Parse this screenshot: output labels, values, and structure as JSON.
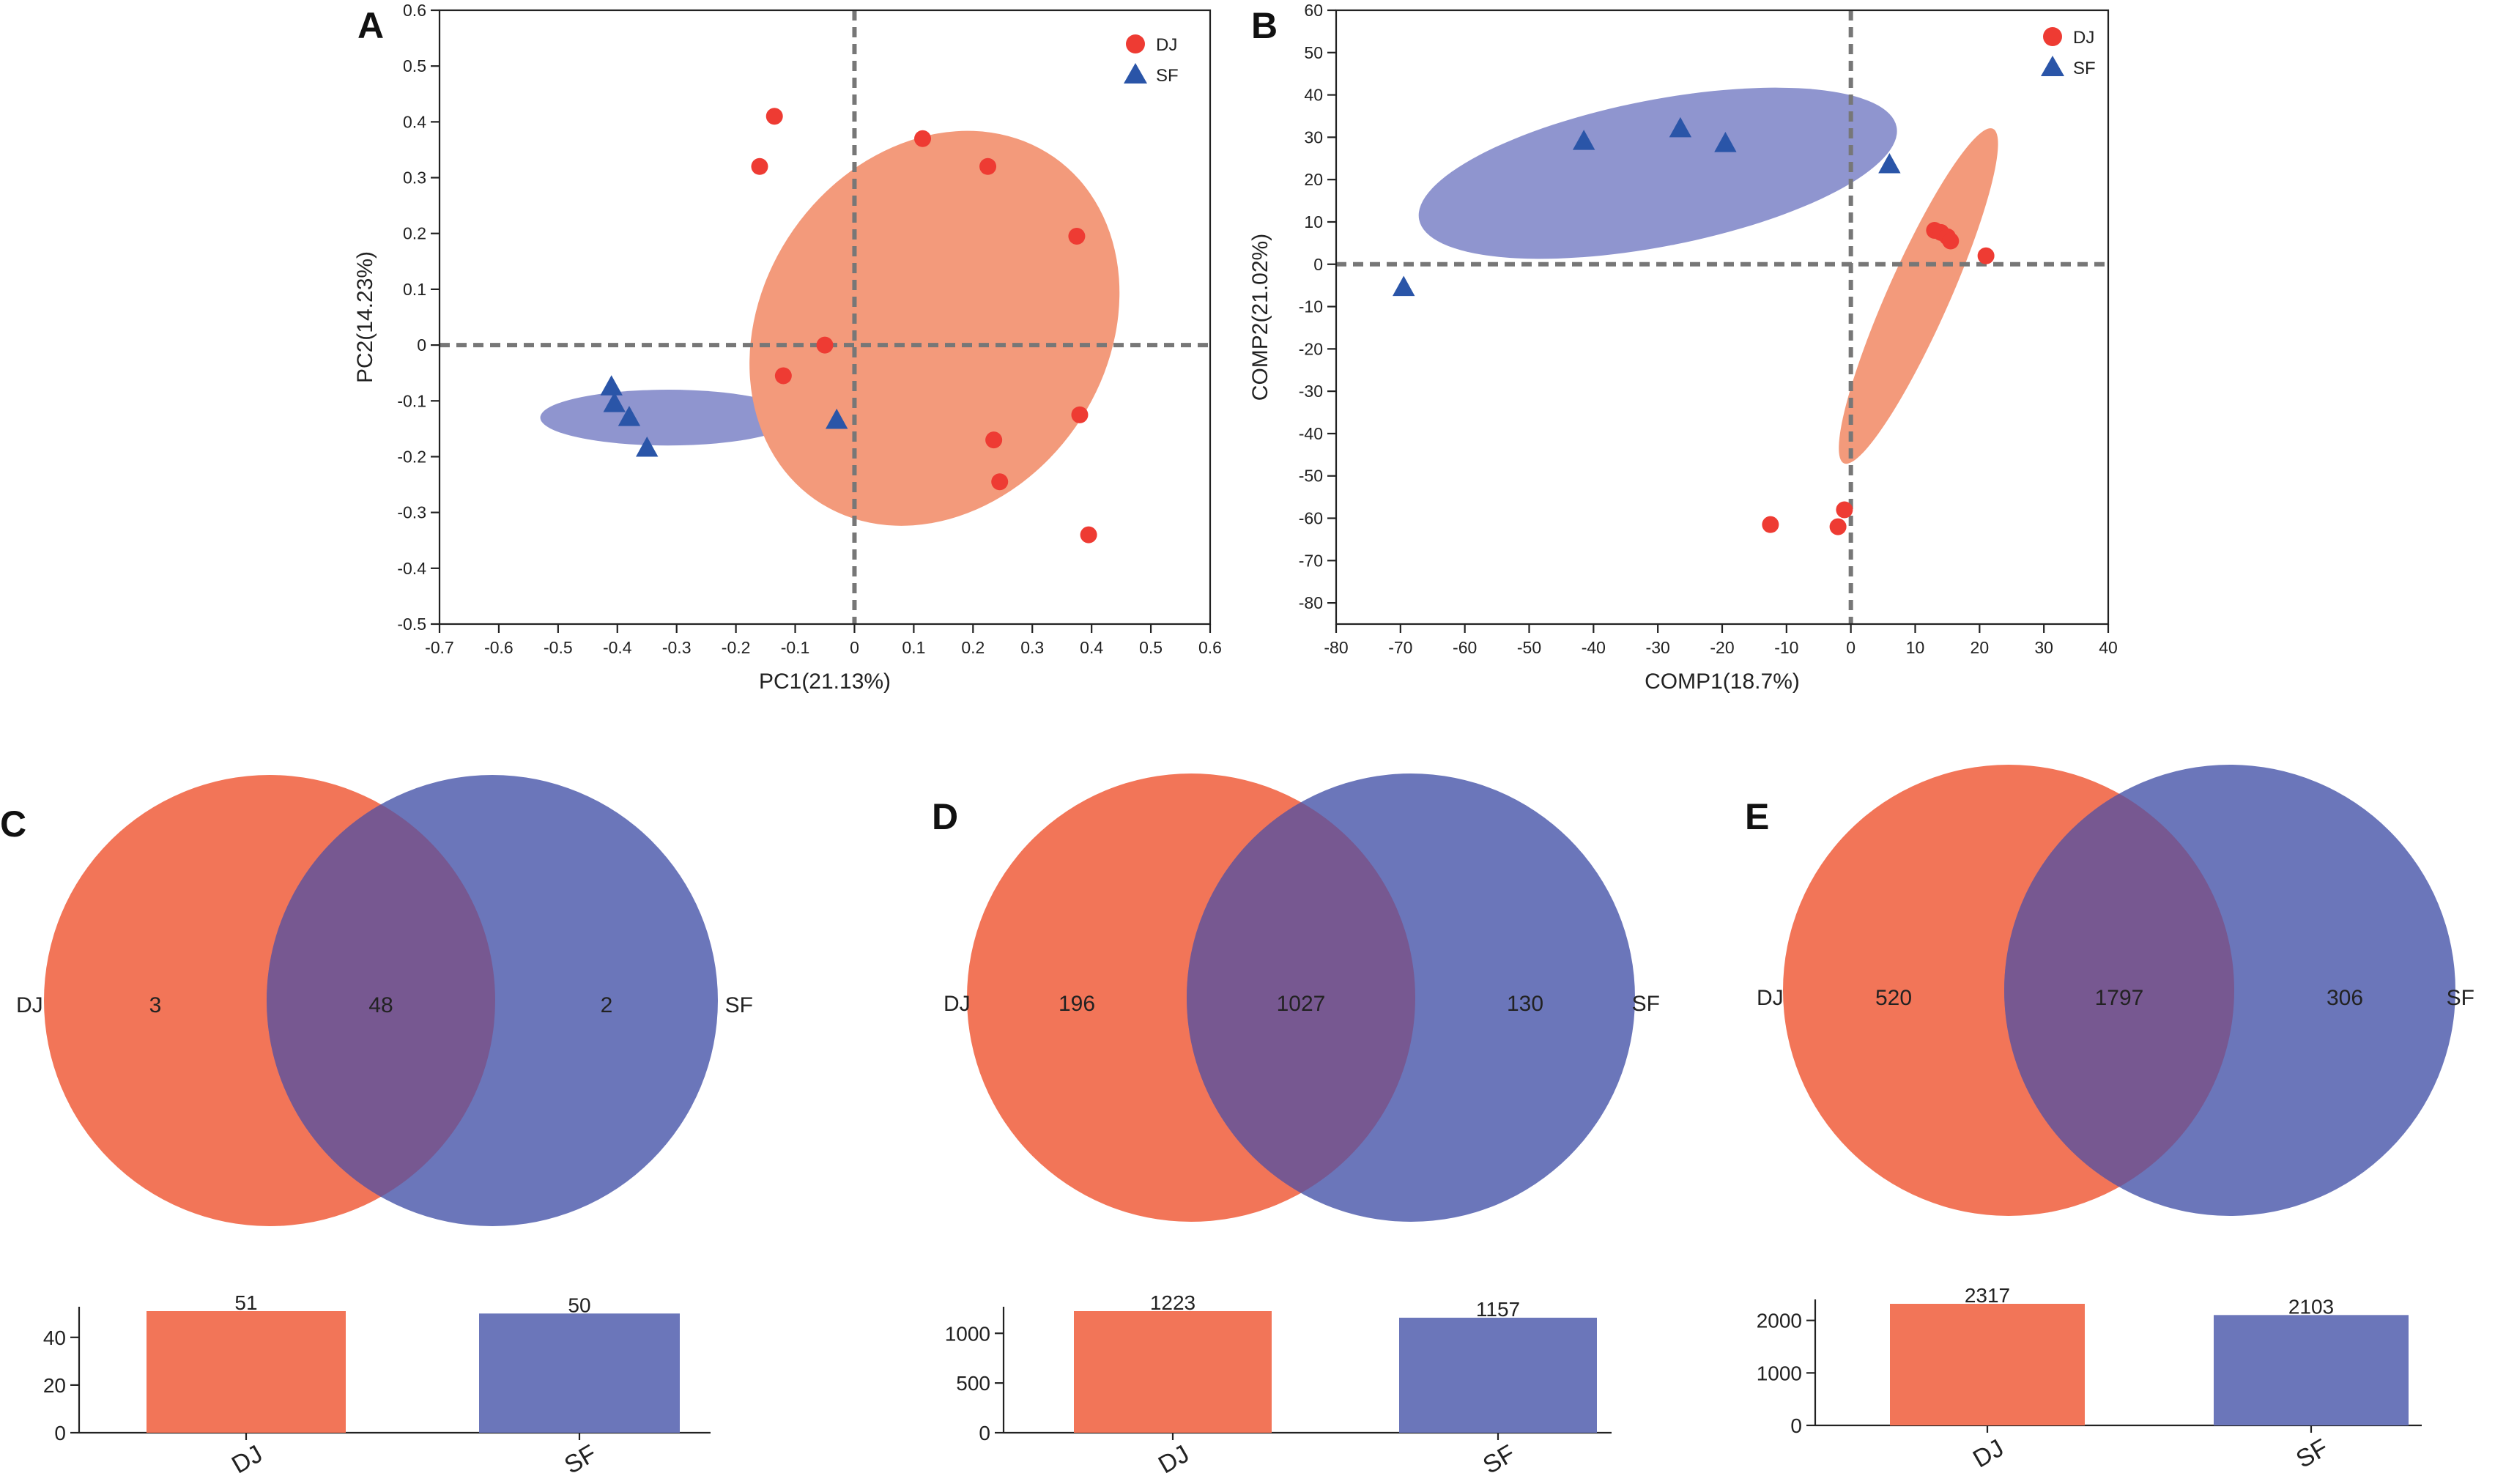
{
  "colors": {
    "dj": "#ee3b33",
    "sf": "#2a55a8",
    "dj_fill": "#f27558",
    "sf_fill": "#6b76ba",
    "dj_ellipse": "#f39a7b",
    "sf_ellipse": "#8f95cf",
    "overlap": "#775891"
  },
  "chart_data": [
    {
      "id": "A",
      "type": "scatter",
      "panel_label": "A",
      "xlabel": "PC1(21.13%)",
      "ylabel": "PC2(14.23%)",
      "xlim": [
        -0.7,
        0.6
      ],
      "ylim": [
        -0.5,
        0.6
      ],
      "xticks": [
        -0.7,
        -0.6,
        -0.5,
        -0.4,
        -0.3,
        -0.2,
        -0.1,
        0,
        0.1,
        0.2,
        0.3,
        0.4,
        0.5,
        0.6
      ],
      "xtick_labels": [
        "-0.7",
        "-0.6",
        "-0.5",
        "-0.4",
        "-0.3",
        "-0.2",
        "-0.1",
        "0",
        "0.1",
        "0.2",
        "0.3",
        "0.4",
        "0.5",
        "0.6"
      ],
      "yticks": [
        0.6,
        0.5,
        0.4,
        0.3,
        0.2,
        0.1,
        0,
        -0.1,
        -0.2,
        -0.3,
        -0.4,
        -0.5
      ],
      "ytick_labels": [
        "0.6",
        "0.5",
        "0.4",
        "0.3",
        "0.2",
        "0.1",
        "0",
        "-0.1",
        "-0.2",
        "-0.3",
        "-0.4",
        "-0.5"
      ],
      "legend_position": "top-right",
      "series": [
        {
          "name": "DJ",
          "marker": "circle",
          "points": [
            [
              -0.135,
              0.41
            ],
            [
              -0.16,
              0.32
            ],
            [
              0.115,
              0.37
            ],
            [
              0.225,
              0.32
            ],
            [
              0.375,
              0.195
            ],
            [
              -0.05,
              0.0
            ],
            [
              -0.12,
              -0.055
            ],
            [
              0.38,
              -0.125
            ],
            [
              0.235,
              -0.17
            ],
            [
              0.245,
              -0.245
            ],
            [
              0.395,
              -0.34
            ]
          ]
        },
        {
          "name": "SF",
          "marker": "triangle",
          "points": [
            [
              -0.41,
              -0.075
            ],
            [
              -0.405,
              -0.105
            ],
            [
              -0.38,
              -0.13
            ],
            [
              -0.35,
              -0.185
            ],
            [
              -0.03,
              -0.135
            ]
          ]
        }
      ],
      "ellipses": [
        {
          "series": "SF",
          "center": [
            -0.315,
            -0.13
          ],
          "radius_x": 0.215,
          "radius_y": 0.05,
          "rotation_deg": 0
        },
        {
          "series": "DJ",
          "center": [
            0.135,
            0.03
          ],
          "radius_x": 0.39,
          "radius_y": 0.26,
          "rotation_deg": 55
        }
      ]
    },
    {
      "id": "B",
      "type": "scatter",
      "panel_label": "B",
      "xlabel": "COMP1(18.7%)",
      "ylabel": "COMP2(21.02%)",
      "xlim": [
        -80,
        40
      ],
      "ylim": [
        -85,
        60
      ],
      "xticks": [
        -80,
        -70,
        -60,
        -50,
        -40,
        -30,
        -20,
        -10,
        0,
        10,
        20,
        30,
        40
      ],
      "xtick_labels": [
        "-80",
        "-70",
        "-60",
        "-50",
        "-40",
        "-30",
        "-20",
        "-10",
        "0",
        "10",
        "20",
        "30",
        "40"
      ],
      "yticks": [
        60,
        50,
        40,
        30,
        20,
        10,
        0,
        -10,
        -20,
        -30,
        -40,
        -50,
        -60,
        -70,
        -80
      ],
      "ytick_labels": [
        "60",
        "50",
        "40",
        "30",
        "20",
        "10",
        "0",
        "-10",
        "-20",
        "-30",
        "-40",
        "-50",
        "-60",
        "-70",
        "-80"
      ],
      "legend_position": "top-right",
      "series": [
        {
          "name": "DJ",
          "marker": "circle",
          "points": [
            [
              13,
              8
            ],
            [
              14,
              7.5
            ],
            [
              15,
              6.5
            ],
            [
              15.5,
              5.5
            ],
            [
              21,
              2
            ],
            [
              -1,
              -58
            ],
            [
              -2,
              -62
            ],
            [
              -12.5,
              -61.5
            ]
          ]
        },
        {
          "name": "SF",
          "marker": "triangle",
          "points": [
            [
              -41.5,
              29
            ],
            [
              -26.5,
              32
            ],
            [
              -19.5,
              28.5
            ],
            [
              6,
              23.5
            ],
            [
              -69.5,
              -5.5
            ]
          ]
        }
      ],
      "ellipses": [
        {
          "series": "SF",
          "center": [
            -30,
            21.5
          ],
          "radius_x": 38,
          "radius_y": 17,
          "rotation_deg": 11
        },
        {
          "series": "DJ",
          "center": [
            10.5,
            -7.5
          ],
          "radius_x": 46,
          "radius_y": 4.8,
          "rotation_deg": 66
        }
      ]
    },
    {
      "id": "C",
      "type": "venn",
      "panel_label": "C",
      "sets": [
        "DJ",
        "SF"
      ],
      "only_dj": "3",
      "shared": "48",
      "only_sf": "2",
      "bars": {
        "categories": [
          "DJ",
          "SF"
        ],
        "values": [
          51,
          50
        ],
        "labels": [
          "51",
          "50"
        ],
        "ylim": [
          0,
          51
        ],
        "yticks": [
          0,
          20,
          40
        ],
        "ytick_labels": [
          "0",
          "20",
          "40"
        ]
      }
    },
    {
      "id": "D",
      "type": "venn",
      "panel_label": "D",
      "sets": [
        "DJ",
        "SF"
      ],
      "only_dj": "196",
      "shared": "1027",
      "only_sf": "130",
      "bars": {
        "categories": [
          "DJ",
          "SF"
        ],
        "values": [
          1223,
          1157
        ],
        "labels": [
          "1223",
          "1157"
        ],
        "ylim": [
          0,
          1223
        ],
        "yticks": [
          0,
          500,
          1000
        ],
        "ytick_labels": [
          "0",
          "500",
          "1000"
        ]
      }
    },
    {
      "id": "E",
      "type": "venn",
      "panel_label": "E",
      "sets": [
        "DJ",
        "SF"
      ],
      "only_dj": "520",
      "shared": "1797",
      "only_sf": "306",
      "bars": {
        "categories": [
          "DJ",
          "SF"
        ],
        "values": [
          2317,
          2103
        ],
        "labels": [
          "2317",
          "2103"
        ],
        "ylim": [
          0,
          2317
        ],
        "yticks": [
          0,
          1000,
          2000
        ],
        "ytick_labels": [
          "0",
          "1000",
          "2000"
        ]
      }
    }
  ]
}
